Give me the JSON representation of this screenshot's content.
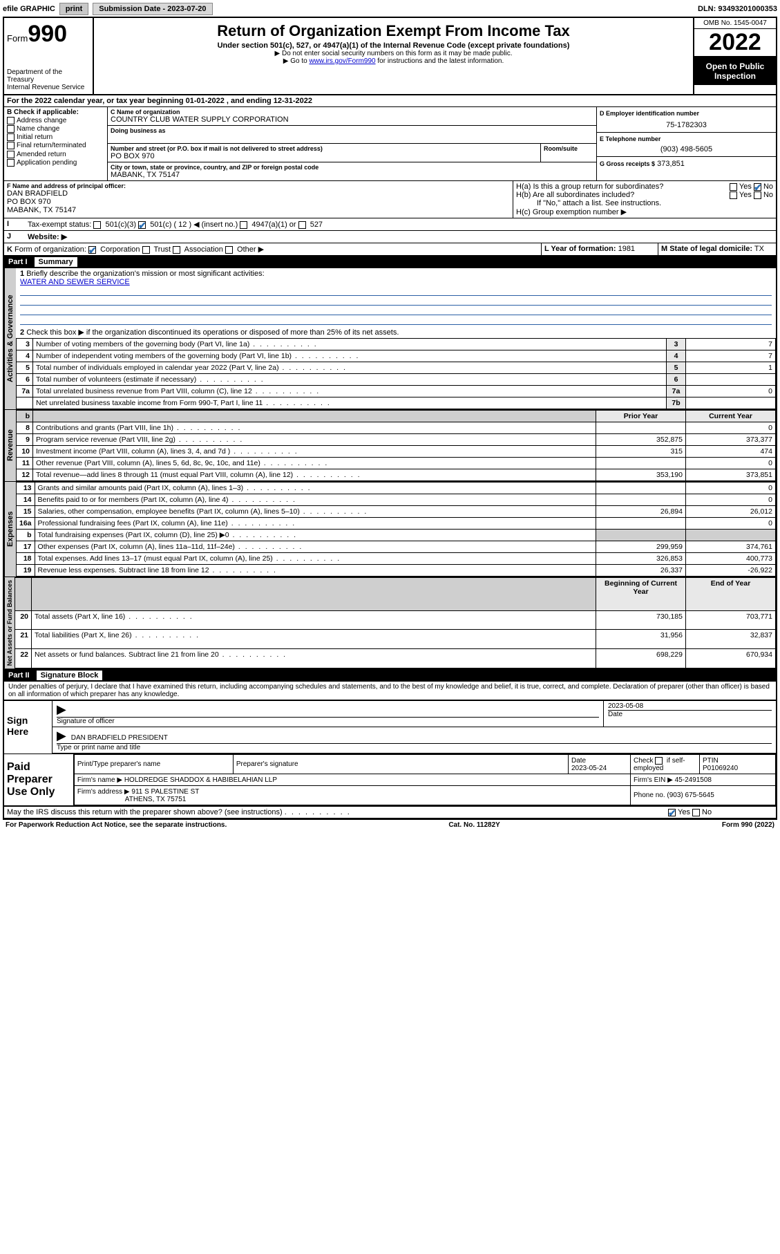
{
  "topbar": {
    "efile": "efile GRAPHIC",
    "print": "print",
    "submission_label": "Submission Date - 2023-07-20",
    "dln": "DLN: 93493201000353"
  },
  "header": {
    "form_prefix": "Form",
    "form_no": "990",
    "dept": "Department of the Treasury",
    "irs": "Internal Revenue Service",
    "title": "Return of Organization Exempt From Income Tax",
    "sub": "Under section 501(c), 527, or 4947(a)(1) of the Internal Revenue Code (except private foundations)",
    "note1": "Do not enter social security numbers on this form as it may be made public.",
    "note2_prefix": "Go to ",
    "note2_link": "www.irs.gov/Form990",
    "note2_suffix": " for instructions and the latest information.",
    "omb": "OMB No. 1545-0047",
    "year": "2022",
    "open": "Open to Public Inspection"
  },
  "lineA": "For the 2022 calendar year, or tax year beginning 01-01-2022   , and ending 12-31-2022",
  "boxB": {
    "label": "B Check if applicable:",
    "items": [
      "Address change",
      "Name change",
      "Initial return",
      "Final return/terminated",
      "Amended return",
      "Application pending"
    ]
  },
  "boxC": {
    "name_label": "C Name of organization",
    "name": "COUNTRY CLUB WATER SUPPLY CORPORATION",
    "dba_label": "Doing business as",
    "addr_label": "Number and street (or P.O. box if mail is not delivered to street address)",
    "room_label": "Room/suite",
    "street": "PO BOX 970",
    "city_label": "City or town, state or province, country, and ZIP or foreign postal code",
    "city": "MABANK, TX  75147"
  },
  "boxD": {
    "label": "D Employer identification number",
    "val": "75-1782303"
  },
  "boxE": {
    "label": "E Telephone number",
    "val": "(903) 498-5605"
  },
  "boxG": {
    "label": "G Gross receipts $",
    "val": "373,851"
  },
  "boxF": {
    "label": "F  Name and address of principal officer:",
    "name": "DAN BRADFIELD",
    "street": "PO BOX 970",
    "city": "MABANK, TX  75147"
  },
  "boxH": {
    "a": "H(a)  Is this a group return for subordinates?",
    "b": "H(b)  Are all subordinates included?",
    "b_note": "If \"No,\" attach a list. See instructions.",
    "c": "H(c)  Group exemption number ▶"
  },
  "lineI": {
    "label": "Tax-exempt status:",
    "c12_insert": "( 12 ) ◀ (insert no.)"
  },
  "lineJ": "Website: ▶",
  "lineK": "Form of organization:",
  "lineK_opts": [
    "Corporation",
    "Trust",
    "Association",
    "Other ▶"
  ],
  "boxL": {
    "label": "L Year of formation:",
    "val": "1981"
  },
  "boxM": {
    "label": "M State of legal domicile:",
    "val": "TX"
  },
  "partI": {
    "no": "Part I",
    "title": "Summary",
    "q1": "Briefly describe the organization's mission or most significant activities:",
    "q1_val": "WATER AND SEWER SERVICE",
    "q2": "Check this box ▶      if the organization discontinued its operations or disposed of more than 25% of its net assets.",
    "lines_gov": [
      {
        "n": "3",
        "t": "Number of voting members of the governing body (Part VI, line 1a)",
        "b": "3",
        "v": "7"
      },
      {
        "n": "4",
        "t": "Number of independent voting members of the governing body (Part VI, line 1b)",
        "b": "4",
        "v": "7"
      },
      {
        "n": "5",
        "t": "Total number of individuals employed in calendar year 2022 (Part V, line 2a)",
        "b": "5",
        "v": "1"
      },
      {
        "n": "6",
        "t": "Total number of volunteers (estimate if necessary)",
        "b": "6",
        "v": ""
      },
      {
        "n": "7a",
        "t": "Total unrelated business revenue from Part VIII, column (C), line 12",
        "b": "7a",
        "v": "0"
      },
      {
        "n": "",
        "t": "Net unrelated business taxable income from Form 990-T, Part I, line 11",
        "b": "7b",
        "v": ""
      }
    ],
    "col_prior": "Prior Year",
    "col_current": "Current Year",
    "lines_rev": [
      {
        "n": "8",
        "t": "Contributions and grants (Part VIII, line 1h)",
        "p": "",
        "c": "0"
      },
      {
        "n": "9",
        "t": "Program service revenue (Part VIII, line 2g)",
        "p": "352,875",
        "c": "373,377"
      },
      {
        "n": "10",
        "t": "Investment income (Part VIII, column (A), lines 3, 4, and 7d )",
        "p": "315",
        "c": "474"
      },
      {
        "n": "11",
        "t": "Other revenue (Part VIII, column (A), lines 5, 6d, 8c, 9c, 10c, and 11e)",
        "p": "",
        "c": "0"
      },
      {
        "n": "12",
        "t": "Total revenue—add lines 8 through 11 (must equal Part VIII, column (A), line 12)",
        "p": "353,190",
        "c": "373,851"
      }
    ],
    "lines_exp": [
      {
        "n": "13",
        "t": "Grants and similar amounts paid (Part IX, column (A), lines 1–3)",
        "p": "",
        "c": "0"
      },
      {
        "n": "14",
        "t": "Benefits paid to or for members (Part IX, column (A), line 4)",
        "p": "",
        "c": "0"
      },
      {
        "n": "15",
        "t": "Salaries, other compensation, employee benefits (Part IX, column (A), lines 5–10)",
        "p": "26,894",
        "c": "26,012"
      },
      {
        "n": "16a",
        "t": "Professional fundraising fees (Part IX, column (A), line 11e)",
        "p": "",
        "c": "0"
      },
      {
        "n": "b",
        "t": "Total fundraising expenses (Part IX, column (D), line 25) ▶0",
        "p": "shade",
        "c": "shade"
      },
      {
        "n": "17",
        "t": "Other expenses (Part IX, column (A), lines 11a–11d, 11f–24e)",
        "p": "299,959",
        "c": "374,761"
      },
      {
        "n": "18",
        "t": "Total expenses. Add lines 13–17 (must equal Part IX, column (A), line 25)",
        "p": "326,853",
        "c": "400,773"
      },
      {
        "n": "19",
        "t": "Revenue less expenses. Subtract line 18 from line 12",
        "p": "26,337",
        "c": "-26,922"
      }
    ],
    "col_begin": "Beginning of Current Year",
    "col_end": "End of Year",
    "lines_net": [
      {
        "n": "20",
        "t": "Total assets (Part X, line 16)",
        "p": "730,185",
        "c": "703,771"
      },
      {
        "n": "21",
        "t": "Total liabilities (Part X, line 26)",
        "p": "31,956",
        "c": "32,837"
      },
      {
        "n": "22",
        "t": "Net assets or fund balances. Subtract line 21 from line 20",
        "p": "698,229",
        "c": "670,934"
      }
    ]
  },
  "vlabels": {
    "gov": "Activities & Governance",
    "rev": "Revenue",
    "exp": "Expenses",
    "net": "Net Assets or Fund Balances"
  },
  "partII": {
    "no": "Part II",
    "title": "Signature Block",
    "decl": "Under penalties of perjury, I declare that I have examined this return, including accompanying schedules and statements, and to the best of my knowledge and belief, it is true, correct, and complete. Declaration of preparer (other than officer) is based on all information of which preparer has any knowledge."
  },
  "sign": {
    "label": "Sign Here",
    "sig_label": "Signature of officer",
    "date_label": "Date",
    "date": "2023-05-08",
    "name": "DAN BRADFIELD  PRESIDENT",
    "name_label": "Type or print name and title"
  },
  "prep": {
    "label": "Paid Preparer Use Only",
    "h1": "Print/Type preparer's name",
    "h2": "Preparer's signature",
    "h3": "Date",
    "date": "2023-05-24",
    "h4_pre": "Check",
    "h4_post": "if self-employed",
    "h5": "PTIN",
    "ptin": "P01069240",
    "firm_name_label": "Firm's name    ▶",
    "firm_name": "HOLDREDGE SHADDOX & HABIBELAHIAN LLP",
    "firm_ein_label": "Firm's EIN ▶",
    "firm_ein": "45-2491508",
    "firm_addr_label": "Firm's address ▶",
    "firm_addr1": "911 S PALESTINE ST",
    "firm_addr2": "ATHENS, TX  75751",
    "phone_label": "Phone no.",
    "phone": "(903) 675-5645"
  },
  "discuss": "May the IRS discuss this return with the preparer shown above? (see instructions)",
  "footer": {
    "left": "For Paperwork Reduction Act Notice, see the separate instructions.",
    "mid": "Cat. No. 11282Y",
    "right_pre": "Form ",
    "right_b": "990",
    "right_post": " (2022)"
  }
}
